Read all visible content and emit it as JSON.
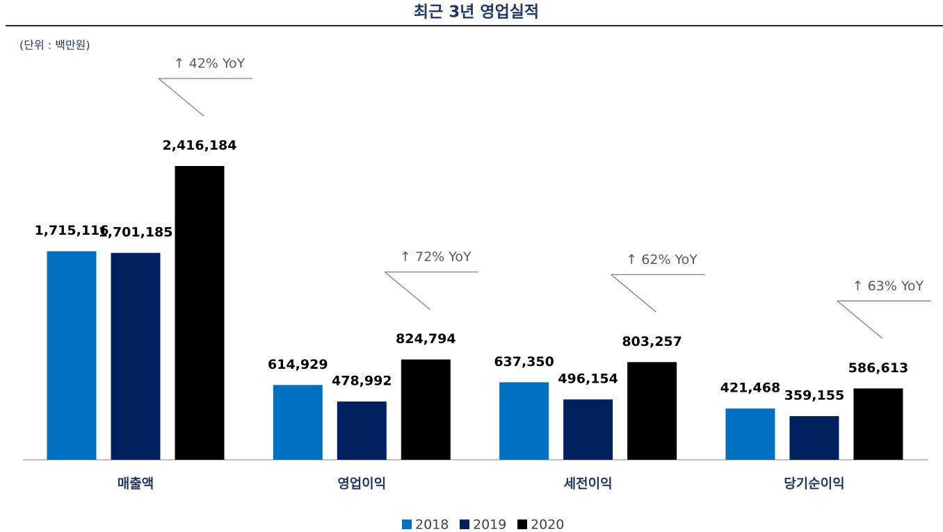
{
  "chart_data": {
    "type": "bar",
    "title": "최근 3년 영업실적",
    "subtitle": "(단위 : 백만원)",
    "categories": [
      "매출액",
      "영업이익",
      "세전이익",
      "당기순이익"
    ],
    "series": [
      {
        "name": "2018",
        "color": "#0070c0",
        "values": [
          1715116,
          614929,
          637350,
          421468
        ],
        "value_labels": [
          "1,715,116",
          "614,929",
          "637,350",
          "421,468"
        ]
      },
      {
        "name": "2019",
        "color": "#002060",
        "values": [
          1701185,
          478992,
          496154,
          359155
        ],
        "value_labels": [
          "1,701,185",
          "478,992",
          "496,154",
          "359,155"
        ]
      },
      {
        "name": "2020",
        "color": "#000000",
        "values": [
          2416184,
          824794,
          803257,
          586613
        ],
        "value_labels": [
          "2,416,184",
          "824,794",
          "803,257",
          "586,613"
        ]
      }
    ],
    "annotations": [
      "↑ 42% YoY",
      "↑ 72% YoY",
      "↑ 62% YoY",
      "↑ 63% YoY"
    ],
    "legend": "bottom"
  }
}
